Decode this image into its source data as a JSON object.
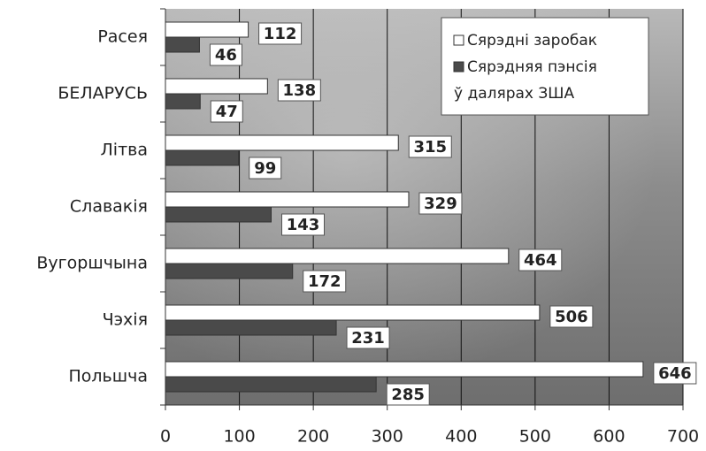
{
  "chart_data": {
    "type": "hbar",
    "categories": [
      "Расея",
      "БЕЛАРУСЬ",
      "Літва",
      "Славакія",
      "Вугоршчына",
      "Чэхія",
      "Польшча"
    ],
    "series": [
      {
        "name": "Сярэдні заробак",
        "color": "#ffffff",
        "values": [
          112,
          138,
          315,
          329,
          464,
          506,
          646
        ]
      },
      {
        "name": "Сярэдняя пэнсія",
        "color": "#4a4a4a",
        "values": [
          46,
          47,
          99,
          143,
          172,
          231,
          285
        ]
      }
    ],
    "units_note": "ў далярах ЗША",
    "xlim": [
      0,
      700
    ],
    "xticks": [
      0,
      100,
      200,
      300,
      400,
      500,
      600,
      700
    ],
    "grid": true
  }
}
